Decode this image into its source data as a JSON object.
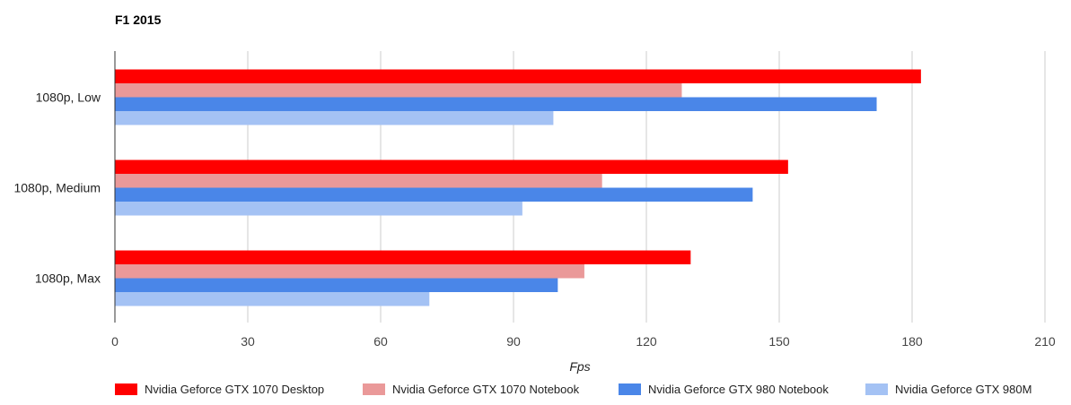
{
  "chart_data": {
    "type": "bar",
    "orientation": "horizontal",
    "title": "F1 2015",
    "xlabel": "Fps",
    "ylabel": "",
    "xlim": [
      0,
      210
    ],
    "xticks": [
      0,
      30,
      60,
      90,
      120,
      150,
      180,
      210
    ],
    "grid": true,
    "legend_position": "bottom",
    "categories": [
      "1080p, Low",
      "1080p, Medium",
      "1080p, Max"
    ],
    "series": [
      {
        "name": "Nvidia Geforce GTX 1070 Desktop",
        "color": "#ff0000",
        "values": [
          182,
          152,
          130
        ]
      },
      {
        "name": "Nvidia Geforce GTX 1070 Notebook",
        "color": "#ea9999",
        "values": [
          128,
          110,
          106
        ]
      },
      {
        "name": "Nvidia Geforce GTX 980 Notebook",
        "color": "#4a86e8",
        "values": [
          172,
          144,
          100
        ]
      },
      {
        "name": "Nvidia Geforce GTX 980M",
        "color": "#a4c2f4",
        "values": [
          99,
          92,
          71
        ]
      }
    ]
  }
}
